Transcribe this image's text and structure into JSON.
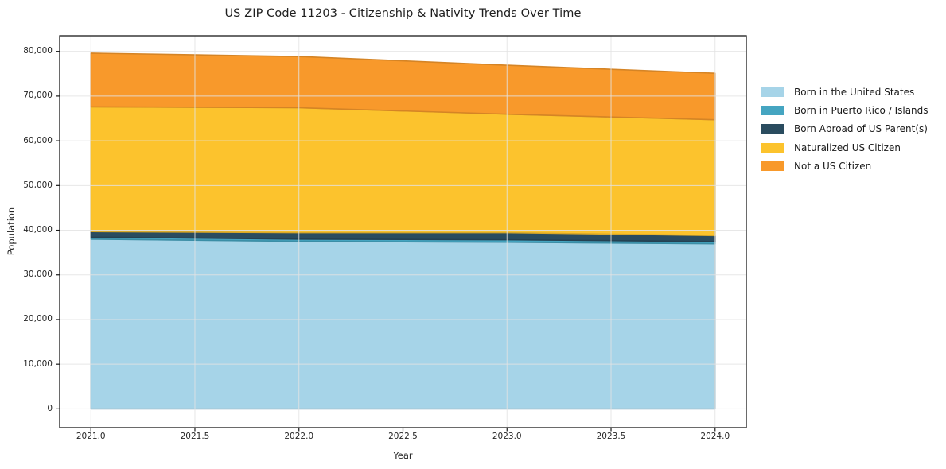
{
  "chart_data": {
    "type": "area",
    "stacked": true,
    "title": "US ZIP Code 11203 - Citizenship & Nativity Trends Over Time",
    "xlabel": "Year",
    "ylabel": "Population",
    "x": [
      2021,
      2022,
      2023,
      2024
    ],
    "series": [
      {
        "name": "Born in the United States",
        "color": "#a6d4e8",
        "values": [
          38000,
          37500,
          37300,
          36950
        ]
      },
      {
        "name": "Born in Puerto Rico / Islands",
        "color": "#45a5c1",
        "values": [
          450,
          500,
          550,
          500
        ]
      },
      {
        "name": "Born Abroad of US Parent(s)",
        "color": "#2a4c5f",
        "values": [
          1250,
          1450,
          1600,
          1350
        ]
      },
      {
        "name": "Naturalized US Citizen",
        "color": "#fcc32d",
        "values": [
          27900,
          27950,
          26500,
          25900
        ]
      },
      {
        "name": "Not a US Citizen",
        "color": "#f8992b",
        "values": [
          12000,
          11450,
          10950,
          10400
        ]
      }
    ],
    "stack_totals": [
      79600,
      78850,
      76900,
      75100
    ],
    "x_ticks": {
      "values": [
        2021.0,
        2021.5,
        2022.0,
        2022.5,
        2023.0,
        2023.5,
        2024.0
      ],
      "labels": [
        "2021.0",
        "2021.5",
        "2022.0",
        "2022.5",
        "2023.0",
        "2023.5",
        "2024.0"
      ]
    },
    "y_ticks": {
      "values": [
        0,
        10000,
        20000,
        30000,
        40000,
        50000,
        60000,
        70000,
        80000
      ],
      "labels": [
        "0",
        "10,000",
        "20,000",
        "30,000",
        "40,000",
        "50,000",
        "60,000",
        "70,000",
        "80,000"
      ]
    },
    "xlim": [
      2020.85,
      2024.15
    ],
    "ylim": [
      -4200,
      83500
    ],
    "grid": true,
    "legend_position": "right-outside"
  },
  "colors": {
    "spine": "#1a1a1a",
    "grid": "#e3e3e3",
    "background": "#ffffff"
  }
}
